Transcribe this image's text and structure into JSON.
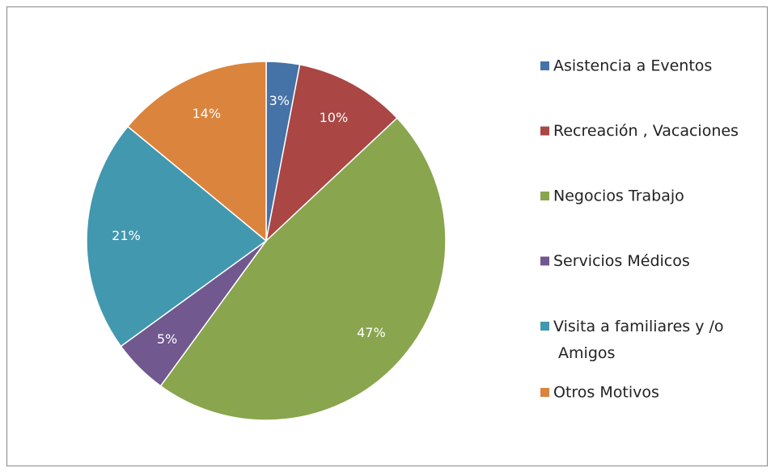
{
  "chart_data": {
    "type": "pie",
    "categories": [
      "Asistencia a Eventos",
      "Recreación , Vacaciones",
      "Negocios Trabajo",
      "Servicios Médicos",
      "Visita a familiares y /o Amigos",
      "Otros Motivos"
    ],
    "values": [
      3,
      10,
      47,
      5,
      21,
      14
    ],
    "value_labels": [
      "3%",
      "10%",
      "47%",
      "5%",
      "21%",
      "14%"
    ],
    "colors": [
      "#4572a7",
      "#aa4643",
      "#89a54e",
      "#71588f",
      "#4198af",
      "#db843d"
    ],
    "legend": "right"
  }
}
